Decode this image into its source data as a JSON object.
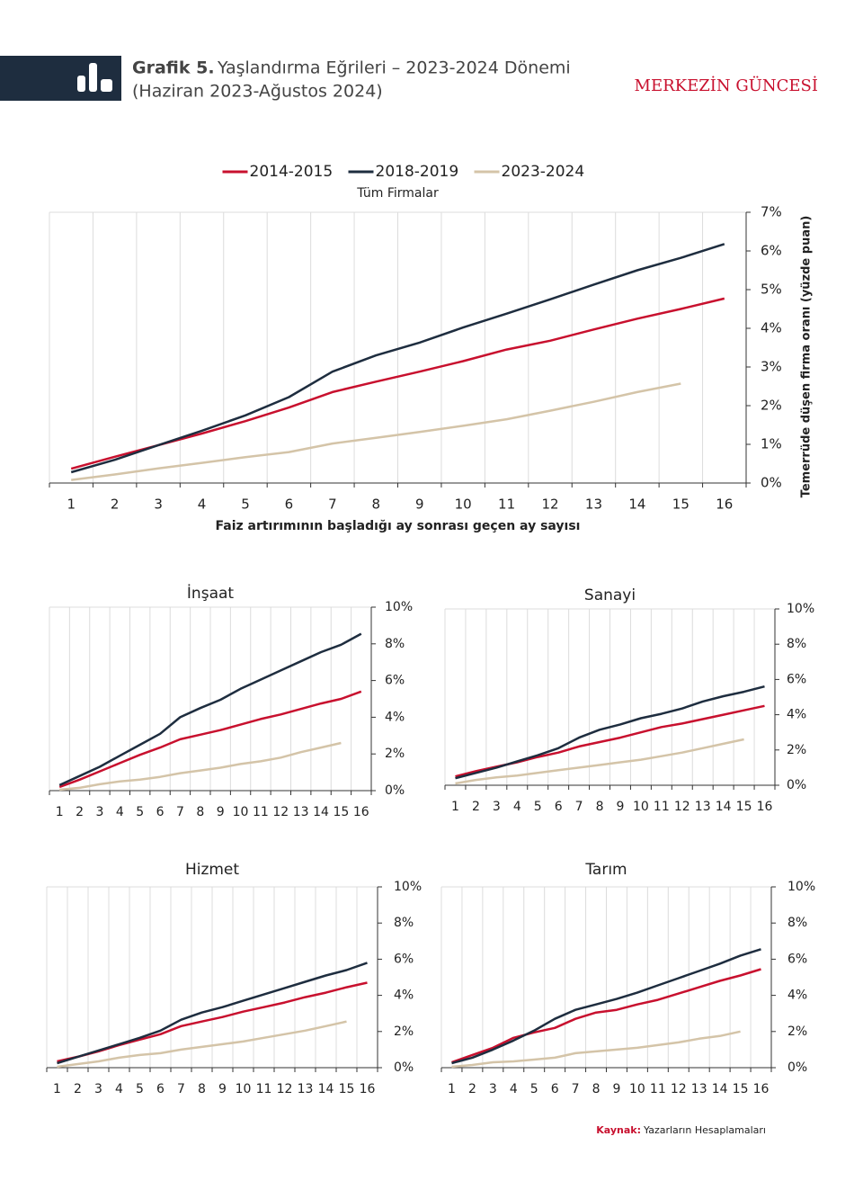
{
  "header": {
    "label": "Grafik 5.",
    "title": "Yaşlandırma Eğrileri – 2023-2024 Dönemi",
    "subtitle": "(Haziran 2023-Ağustos 2024)",
    "brand": "MERKEZİN GÜNCESİ"
  },
  "source": {
    "label": "Kaynak:",
    "text": "Yazarların Hesaplamaları"
  },
  "chart_data": [
    {
      "type": "line",
      "title": "Tüm Firmalar",
      "x_label": "Faiz artırımının başladığı ay sonrası geçen ay sayısı",
      "y_label": "Temerrüde düşen firma oranı (yüzde puan)",
      "categories": [
        "1",
        "2",
        "3",
        "4",
        "5",
        "6",
        "7",
        "8",
        "9",
        "10",
        "11",
        "12",
        "13",
        "14",
        "15",
        "16"
      ],
      "ylim": [
        0,
        7
      ],
      "yticks": [
        {
          "value": 0,
          "label": "0%"
        },
        {
          "value": 1,
          "label": "1%"
        },
        {
          "value": 2,
          "label": "2%"
        },
        {
          "value": 3,
          "label": "3%"
        },
        {
          "value": 4,
          "label": "4%"
        },
        {
          "value": 5,
          "label": "5%"
        },
        {
          "value": 6,
          "label": "6%"
        },
        {
          "value": 7,
          "label": "7%"
        }
      ],
      "grid": true,
      "legend": "top",
      "series": [
        {
          "name": "2014-2015",
          "color": "#c8102e",
          "values": [
            0.37,
            0.68,
            0.98,
            1.28,
            1.6,
            1.95,
            2.35,
            2.62,
            2.88,
            3.15,
            3.45,
            3.68,
            3.97,
            4.25,
            4.5,
            4.77
          ]
        },
        {
          "name": "2018-2019",
          "color": "#1e2d3f",
          "values": [
            0.28,
            0.6,
            0.98,
            1.35,
            1.75,
            2.22,
            2.88,
            3.3,
            3.63,
            4.02,
            4.38,
            4.75,
            5.13,
            5.5,
            5.82,
            6.18
          ]
        },
        {
          "name": "2023-2024",
          "color": "#d4c4a8",
          "values": [
            0.08,
            0.22,
            0.38,
            0.52,
            0.67,
            0.8,
            1.02,
            1.17,
            1.32,
            1.48,
            1.65,
            1.87,
            2.1,
            2.35,
            2.57,
            null
          ]
        }
      ]
    },
    {
      "type": "line",
      "title": "İnşaat",
      "categories": [
        "1",
        "2",
        "3",
        "4",
        "5",
        "6",
        "7",
        "8",
        "9",
        "10",
        "11",
        "12",
        "13",
        "14",
        "15",
        "16"
      ],
      "ylim": [
        0,
        10
      ],
      "yticks": [
        {
          "value": 0,
          "label": "0%"
        },
        {
          "value": 2,
          "label": "2%"
        },
        {
          "value": 4,
          "label": "4%"
        },
        {
          "value": 6,
          "label": "6%"
        },
        {
          "value": 8,
          "label": "8%"
        },
        {
          "value": 10,
          "label": "10%"
        }
      ],
      "grid": true,
      "series": [
        {
          "color": "#c8102e",
          "values": [
            0.2,
            0.6,
            1.05,
            1.5,
            1.95,
            2.35,
            2.8,
            3.05,
            3.3,
            3.6,
            3.9,
            4.15,
            4.45,
            4.75,
            5.0,
            5.4
          ]
        },
        {
          "color": "#1e2d3f",
          "values": [
            0.3,
            0.8,
            1.3,
            1.9,
            2.5,
            3.1,
            4.0,
            4.5,
            4.95,
            5.55,
            6.05,
            6.55,
            7.05,
            7.55,
            7.95,
            8.55
          ]
        },
        {
          "color": "#d4c4a8",
          "values": [
            0.05,
            0.15,
            0.35,
            0.5,
            0.6,
            0.75,
            0.95,
            1.1,
            1.25,
            1.45,
            1.6,
            1.8,
            2.1,
            2.35,
            2.6,
            null
          ]
        }
      ]
    },
    {
      "type": "line",
      "title": "Sanayi",
      "categories": [
        "1",
        "2",
        "3",
        "4",
        "5",
        "6",
        "7",
        "8",
        "9",
        "10",
        "11",
        "12",
        "13",
        "14",
        "15",
        "16"
      ],
      "ylim": [
        0,
        10
      ],
      "yticks": [
        {
          "value": 0,
          "label": "0%"
        },
        {
          "value": 2,
          "label": "2%"
        },
        {
          "value": 4,
          "label": "4%"
        },
        {
          "value": 6,
          "label": "6%"
        },
        {
          "value": 8,
          "label": "8%"
        },
        {
          "value": 10,
          "label": "10%"
        }
      ],
      "grid": true,
      "series": [
        {
          "color": "#c8102e",
          "values": [
            0.5,
            0.8,
            1.05,
            1.3,
            1.6,
            1.85,
            2.2,
            2.45,
            2.7,
            3.0,
            3.3,
            3.5,
            3.75,
            4.0,
            4.25,
            4.5
          ]
        },
        {
          "color": "#1e2d3f",
          "values": [
            0.4,
            0.7,
            1.0,
            1.35,
            1.7,
            2.1,
            2.7,
            3.15,
            3.45,
            3.8,
            4.05,
            4.35,
            4.75,
            5.05,
            5.3,
            5.6
          ]
        },
        {
          "color": "#d4c4a8",
          "values": [
            0.1,
            0.3,
            0.45,
            0.55,
            0.7,
            0.85,
            1.0,
            1.15,
            1.3,
            1.45,
            1.65,
            1.85,
            2.1,
            2.35,
            2.6,
            null
          ]
        }
      ]
    },
    {
      "type": "line",
      "title": "Hizmet",
      "categories": [
        "1",
        "2",
        "3",
        "4",
        "5",
        "6",
        "7",
        "8",
        "9",
        "10",
        "11",
        "12",
        "13",
        "14",
        "15",
        "16"
      ],
      "ylim": [
        0,
        10
      ],
      "yticks": [
        {
          "value": 0,
          "label": "0%"
        },
        {
          "value": 2,
          "label": "2%"
        },
        {
          "value": 4,
          "label": "4%"
        },
        {
          "value": 6,
          "label": "6%"
        },
        {
          "value": 8,
          "label": "8%"
        },
        {
          "value": 10,
          "label": "10%"
        }
      ],
      "grid": true,
      "series": [
        {
          "color": "#c8102e",
          "values": [
            0.35,
            0.6,
            0.9,
            1.25,
            1.55,
            1.85,
            2.3,
            2.55,
            2.8,
            3.1,
            3.35,
            3.6,
            3.9,
            4.15,
            4.45,
            4.7
          ]
        },
        {
          "color": "#1e2d3f",
          "values": [
            0.25,
            0.6,
            0.95,
            1.3,
            1.65,
            2.05,
            2.65,
            3.05,
            3.35,
            3.7,
            4.05,
            4.4,
            4.75,
            5.1,
            5.4,
            5.8
          ]
        },
        {
          "color": "#d4c4a8",
          "values": [
            0.05,
            0.2,
            0.35,
            0.55,
            0.7,
            0.8,
            1.0,
            1.15,
            1.3,
            1.45,
            1.65,
            1.85,
            2.05,
            2.3,
            2.55,
            null
          ]
        }
      ]
    },
    {
      "type": "line",
      "title": "Tarım",
      "categories": [
        "1",
        "2",
        "3",
        "4",
        "5",
        "6",
        "7",
        "8",
        "9",
        "10",
        "11",
        "12",
        "13",
        "14",
        "15",
        "16"
      ],
      "ylim": [
        0,
        10
      ],
      "yticks": [
        {
          "value": 0,
          "label": "0%"
        },
        {
          "value": 2,
          "label": "2%"
        },
        {
          "value": 4,
          "label": "4%"
        },
        {
          "value": 6,
          "label": "6%"
        },
        {
          "value": 8,
          "label": "8%"
        },
        {
          "value": 10,
          "label": "10%"
        }
      ],
      "grid": true,
      "series": [
        {
          "color": "#c8102e",
          "values": [
            0.3,
            0.7,
            1.1,
            1.65,
            1.95,
            2.2,
            2.7,
            3.05,
            3.2,
            3.5,
            3.75,
            4.1,
            4.45,
            4.8,
            5.1,
            5.45
          ]
        },
        {
          "color": "#1e2d3f",
          "values": [
            0.25,
            0.55,
            1.0,
            1.5,
            2.05,
            2.7,
            3.2,
            3.5,
            3.8,
            4.15,
            4.55,
            4.95,
            5.35,
            5.75,
            6.2,
            6.55
          ]
        },
        {
          "color": "#d4c4a8",
          "values": [
            0.05,
            0.15,
            0.3,
            0.35,
            0.45,
            0.55,
            0.8,
            0.9,
            1.0,
            1.1,
            1.25,
            1.4,
            1.6,
            1.75,
            2.0,
            null
          ]
        }
      ]
    }
  ]
}
